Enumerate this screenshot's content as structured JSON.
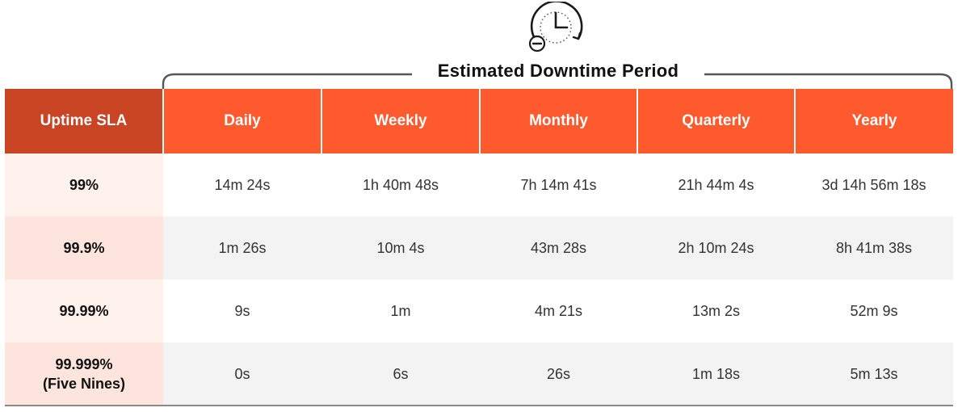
{
  "period_title": "Estimated Downtime Period",
  "icons": {
    "header_icon": "clock-minus-icon"
  },
  "colors": {
    "header_first": "#c84423",
    "header": "#fe5a2e",
    "sla_cell_light": "#fff1ec",
    "sla_cell_dark": "#fde5de",
    "row_alt": "#f3f3f3"
  },
  "table": {
    "columns": [
      "Uptime SLA",
      "Daily",
      "Weekly",
      "Monthly",
      "Quarterly",
      "Yearly"
    ],
    "rows": [
      {
        "sla": [
          "99%"
        ],
        "values": [
          "14m 24s",
          "1h 40m 48s",
          "7h 14m 41s",
          "21h 44m 4s",
          "3d 14h 56m 18s"
        ]
      },
      {
        "sla": [
          "99.9%"
        ],
        "values": [
          "1m 26s",
          "10m 4s",
          "43m 28s",
          "2h 10m 24s",
          "8h 41m 38s"
        ]
      },
      {
        "sla": [
          "99.99%"
        ],
        "values": [
          "9s",
          "1m",
          "4m 21s",
          "13m 2s",
          "52m 9s"
        ]
      },
      {
        "sla": [
          "99.999%",
          "(Five Nines)"
        ],
        "values": [
          "0s",
          "6s",
          "26s",
          "1m 18s",
          "5m 13s"
        ]
      }
    ]
  }
}
